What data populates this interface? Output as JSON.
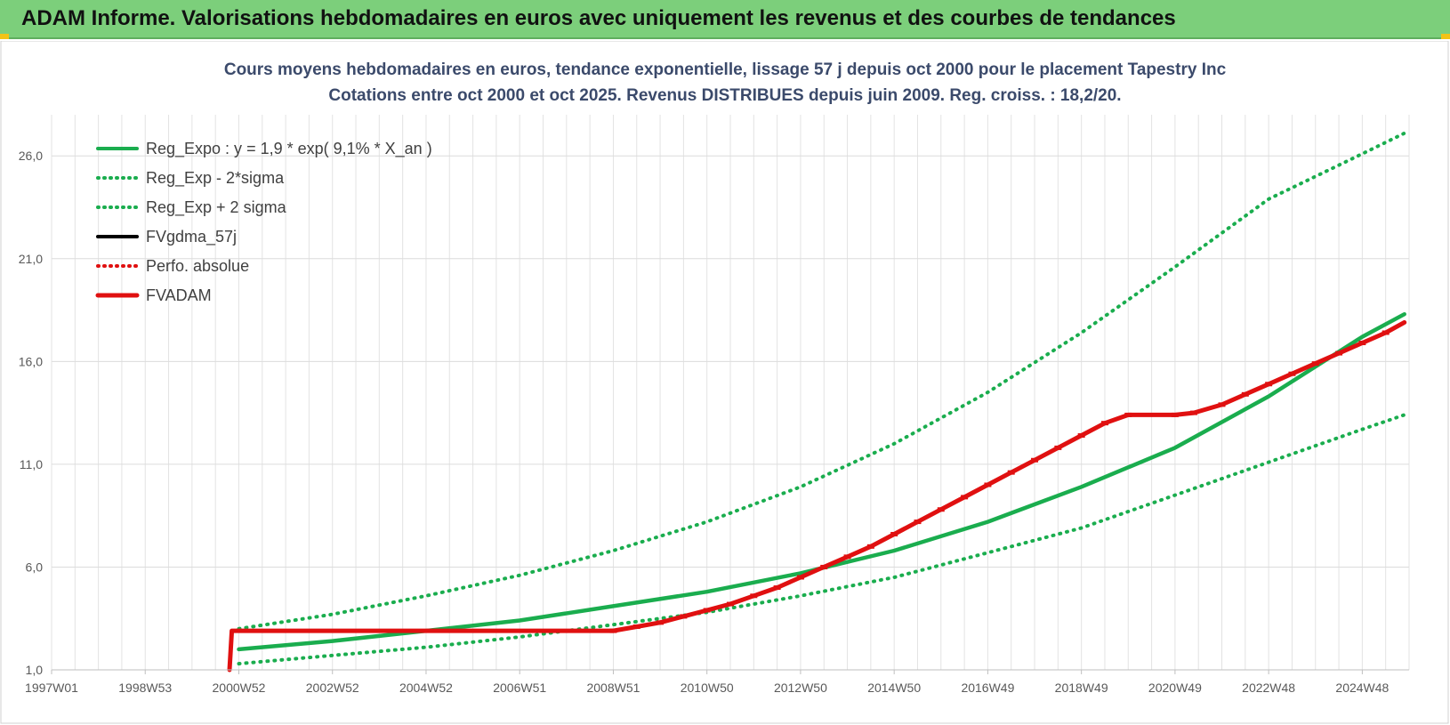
{
  "banner": {
    "title": "ADAM Informe. Valorisations hebdomadaires en euros avec uniquement les revenus et des courbes de tendances"
  },
  "chart_data": {
    "type": "line",
    "title": "Cours moyens hebdomadaires en euros, tendance exponentielle, lissage 57 j depuis oct 2000 pour le placement Tapestry Inc",
    "subtitle": "Cotations entre oct 2000 et oct 2025.  Revenus DISTRIBUES depuis juin 2009. Reg. croiss. : 18,2/20.",
    "xlabel": "",
    "ylabel": "",
    "x_ticks": [
      "1997W01",
      "1998W53",
      "2000W52",
      "2002W52",
      "2004W52",
      "2006W51",
      "2008W51",
      "2010W50",
      "2012W50",
      "2014W50",
      "2016W49",
      "2018W49",
      "2020W49",
      "2022W48",
      "2024W48"
    ],
    "x_tick_years": [
      1997.0,
      1999.0,
      2001.0,
      2003.0,
      2005.0,
      2007.0,
      2009.0,
      2011.0,
      2013.0,
      2015.0,
      2017.0,
      2019.0,
      2021.0,
      2023.0,
      2025.0
    ],
    "xlim": [
      1997.0,
      2026.0
    ],
    "y_ticks": [
      "1,0",
      "6,0",
      "11,0",
      "16,0",
      "21,0",
      "26,0"
    ],
    "y_tick_values": [
      1,
      6,
      11,
      16,
      21,
      26
    ],
    "ylim": [
      1,
      28
    ],
    "grid": true,
    "legend_position": "top-left",
    "series": [
      {
        "name": "Reg_Expo : y = 1,9 * exp( 9,1% *  X_an )",
        "style": "solid",
        "color": "#1aad4e",
        "x": [
          2001.0,
          2003.0,
          2005.0,
          2007.0,
          2009.0,
          2011.0,
          2013.0,
          2015.0,
          2017.0,
          2019.0,
          2021.0,
          2023.0,
          2025.0,
          2025.9
        ],
        "y": [
          2.0,
          2.4,
          2.9,
          3.4,
          4.1,
          4.8,
          5.7,
          6.8,
          8.2,
          9.9,
          11.8,
          14.3,
          17.2,
          18.3
        ]
      },
      {
        "name": "Reg_Exp - 2*sigma",
        "style": "dotted",
        "color": "#1aad4e",
        "x": [
          2001.0,
          2003.0,
          2005.0,
          2007.0,
          2009.0,
          2011.0,
          2013.0,
          2015.0,
          2017.0,
          2019.0,
          2021.0,
          2023.0,
          2025.0,
          2025.9
        ],
        "y": [
          1.3,
          1.7,
          2.1,
          2.6,
          3.2,
          3.8,
          4.6,
          5.5,
          6.7,
          7.9,
          9.5,
          11.1,
          12.7,
          13.4
        ]
      },
      {
        "name": "Reg_Exp + 2 sigma",
        "style": "dotted",
        "color": "#1aad4e",
        "x": [
          2001.0,
          2003.0,
          2005.0,
          2007.0,
          2009.0,
          2011.0,
          2013.0,
          2015.0,
          2017.0,
          2019.0,
          2021.0,
          2023.0,
          2025.0,
          2025.9
        ],
        "y": [
          3.0,
          3.7,
          4.6,
          5.6,
          6.8,
          8.2,
          9.9,
          12.0,
          14.5,
          17.4,
          20.6,
          23.9,
          26.1,
          27.1
        ]
      },
      {
        "name": "FVgdma_57j",
        "style": "solid",
        "color": "#000000",
        "x": [],
        "y": []
      },
      {
        "name": "Perfo. absolue",
        "style": "dotted",
        "color": "#e01010",
        "x": [],
        "y": []
      },
      {
        "name": "FVADAM",
        "style": "solid-thick",
        "color": "#e01010",
        "x": [
          2000.8,
          2000.85,
          2009.0,
          2009.5,
          2010.0,
          2010.5,
          2011.0,
          2011.5,
          2012.0,
          2012.5,
          2013.0,
          2013.5,
          2014.0,
          2014.5,
          2015.0,
          2015.5,
          2016.0,
          2016.5,
          2017.0,
          2017.5,
          2018.0,
          2018.5,
          2019.0,
          2019.5,
          2020.0,
          2021.0,
          2021.4,
          2022.0,
          2022.5,
          2023.0,
          2023.5,
          2024.0,
          2024.5,
          2025.0,
          2025.5,
          2025.9
        ],
        "y": [
          1.0,
          2.9,
          2.9,
          3.1,
          3.3,
          3.6,
          3.9,
          4.2,
          4.6,
          5.0,
          5.5,
          6.0,
          6.5,
          7.0,
          7.6,
          8.2,
          8.8,
          9.4,
          10.0,
          10.6,
          11.2,
          11.8,
          12.4,
          13.0,
          13.4,
          13.4,
          13.5,
          13.9,
          14.4,
          14.9,
          15.4,
          15.9,
          16.4,
          16.9,
          17.4,
          17.9
        ]
      }
    ]
  }
}
